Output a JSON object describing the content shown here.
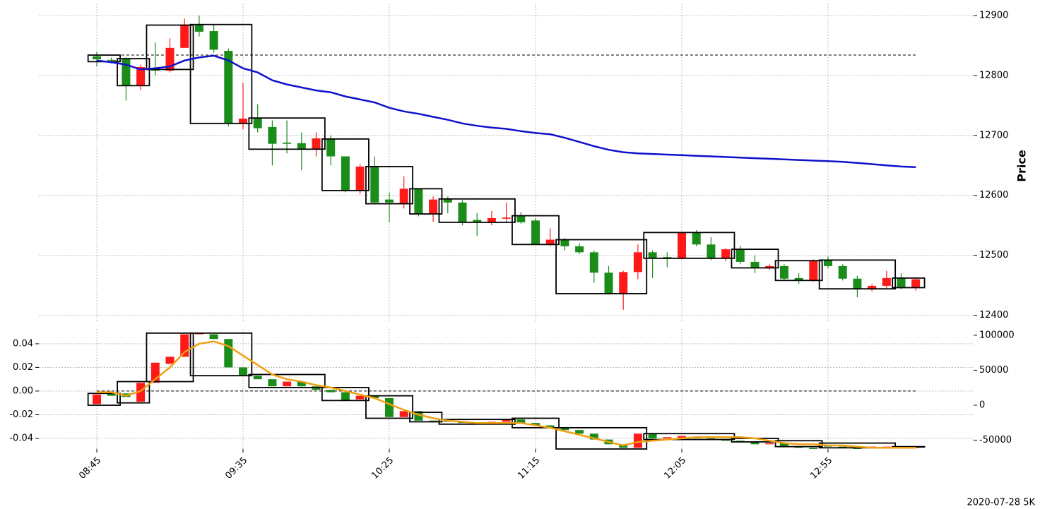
{
  "chart_data": [
    {
      "type": "candlestick",
      "ylabel": "Price",
      "ylim": [
        12390,
        12920
      ],
      "yticks": [
        12400,
        12500,
        12600,
        12700,
        12800,
        12900
      ],
      "grid": true,
      "up_color": "#ff1a1a",
      "down_color": "#1a8c1a",
      "line_color": "#1010cc",
      "box_color": "#000000",
      "hline": 12834,
      "open": [
        12832,
        12826,
        12828,
        12784,
        12812,
        12808,
        12846,
        12885,
        12874,
        12841,
        12720,
        12729,
        12714,
        12688,
        12687,
        12677,
        12694,
        12665,
        12608,
        12648,
        12593,
        12585,
        12612,
        12569,
        12594,
        12588,
        12559,
        12555,
        12561,
        12566,
        12558,
        12519,
        12526,
        12515,
        12505,
        12471,
        12436,
        12472,
        12505,
        12497,
        12495,
        12538,
        12518,
        12495,
        12510,
        12489,
        12479,
        12482,
        12462,
        12458,
        12492,
        12482,
        12461,
        12444,
        12449,
        12462,
        12446
      ],
      "high": [
        12840,
        12830,
        12830,
        12818,
        12855,
        12862,
        12895,
        12900,
        12885,
        12845,
        12788,
        12752,
        12725,
        12725,
        12705,
        12705,
        12700,
        12665,
        12652,
        12665,
        12605,
        12632,
        12612,
        12598,
        12598,
        12592,
        12570,
        12574,
        12588,
        12572,
        12562,
        12545,
        12529,
        12520,
        12508,
        12482,
        12474,
        12518,
        12508,
        12505,
        12538,
        12542,
        12530,
        12512,
        12516,
        12500,
        12485,
        12485,
        12470,
        12493,
        12498,
        12485,
        12466,
        12452,
        12474,
        12470,
        12462
      ],
      "low": [
        12815,
        12820,
        12758,
        12776,
        12800,
        12805,
        12846,
        12865,
        12838,
        12715,
        12710,
        12705,
        12650,
        12670,
        12642,
        12665,
        12650,
        12605,
        12602,
        12585,
        12555,
        12578,
        12565,
        12556,
        12570,
        12550,
        12532,
        12550,
        12556,
        12553,
        12517,
        12515,
        12508,
        12502,
        12454,
        12435,
        12409,
        12460,
        12462,
        12480,
        12493,
        12515,
        12492,
        12490,
        12485,
        12470,
        12476,
        12458,
        12452,
        12456,
        12478,
        12458,
        12430,
        12440,
        12445,
        12443,
        12441
      ],
      "close": [
        12827,
        12825,
        12784,
        12814,
        12808,
        12846,
        12885,
        12873,
        12843,
        12720,
        12728,
        12712,
        12686,
        12686,
        12677,
        12695,
        12665,
        12608,
        12648,
        12588,
        12588,
        12611,
        12569,
        12593,
        12588,
        12555,
        12555,
        12562,
        12563,
        12555,
        12519,
        12526,
        12515,
        12505,
        12471,
        12436,
        12472,
        12505,
        12496,
        12494,
        12538,
        12518,
        12495,
        12510,
        12489,
        12479,
        12482,
        12461,
        12458,
        12491,
        12482,
        12461,
        12444,
        12449,
        12462,
        12446,
        12460
      ],
      "line": [
        12825,
        12822,
        12818,
        12810,
        12812,
        12815,
        12825,
        12830,
        12833,
        12825,
        12812,
        12805,
        12792,
        12785,
        12780,
        12775,
        12772,
        12765,
        12760,
        12755,
        12746,
        12740,
        12736,
        12731,
        12726,
        12720,
        12716,
        12713,
        12711,
        12707,
        12704,
        12702,
        12696,
        12689,
        12682,
        12676,
        12672,
        12670,
        12669,
        12668,
        12667,
        12666,
        12665,
        12664,
        12663,
        12662,
        12661,
        12660,
        12659,
        12658,
        12657,
        12656,
        12654,
        12652,
        12650,
        12648,
        12647
      ],
      "boxes": [
        {
          "start": 0,
          "end": 1,
          "high": 12834,
          "low": 12823
        },
        {
          "start": 2,
          "end": 3,
          "high": 12828,
          "low": 12783
        },
        {
          "start": 4,
          "end": 6,
          "high": 12884,
          "low": 12810
        },
        {
          "start": 7,
          "end": 10,
          "high": 12885,
          "low": 12720
        },
        {
          "start": 11,
          "end": 15,
          "high": 12729,
          "low": 12677
        },
        {
          "start": 16,
          "end": 18,
          "high": 12694,
          "low": 12608
        },
        {
          "start": 19,
          "end": 21,
          "high": 12648,
          "low": 12586
        },
        {
          "start": 22,
          "end": 23,
          "high": 12611,
          "low": 12569
        },
        {
          "start": 24,
          "end": 28,
          "high": 12594,
          "low": 12555
        },
        {
          "start": 29,
          "end": 31,
          "high": 12566,
          "low": 12518
        },
        {
          "start": 32,
          "end": 37,
          "high": 12526,
          "low": 12436
        },
        {
          "start": 38,
          "end": 43,
          "high": 12538,
          "low": 12495
        },
        {
          "start": 44,
          "end": 46,
          "high": 12510,
          "low": 12479
        },
        {
          "start": 47,
          "end": 49,
          "high": 12491,
          "low": 12458
        },
        {
          "start": 50,
          "end": 54,
          "high": 12492,
          "low": 12444
        },
        {
          "start": 55,
          "end": 56,
          "high": 12462,
          "low": 12446
        }
      ]
    },
    {
      "type": "candlestick",
      "note": "2020-07-28 5K",
      "categories": [
        "08:45",
        null,
        null,
        null,
        null,
        null,
        null,
        null,
        null,
        null,
        "09:35",
        null,
        null,
        null,
        null,
        null,
        null,
        null,
        null,
        null,
        "10:25",
        null,
        null,
        null,
        null,
        null,
        null,
        null,
        null,
        null,
        "11:15",
        null,
        null,
        null,
        null,
        null,
        null,
        null,
        null,
        null,
        "12:05",
        null,
        null,
        null,
        null,
        null,
        null,
        null,
        null,
        null,
        "12:55",
        null,
        null,
        null,
        null,
        null,
        null
      ],
      "ylim": [
        -0.049,
        0.0525
      ],
      "yticks": [
        -0.04,
        -0.02,
        {
          "value": 0,
          "label": "0.00"
        },
        0.02,
        0.04
      ],
      "y2lim": [
        -62700,
        109000
      ],
      "y2ticks": [
        -50000,
        0,
        50000,
        100000
      ],
      "grid": true,
      "up_color": "#ff1a1a",
      "down_color": "#1a8c1a",
      "line_color": "#f0a010",
      "box_color": "#000000",
      "hline": 0,
      "open": [
        -0.011,
        -0.001,
        -0.002,
        -0.009,
        0.007,
        0.023,
        0.029,
        0.048,
        0.048,
        0.044,
        0.02,
        0.013,
        0.01,
        0.004,
        0.008,
        0.004,
        0.001,
        -0.001,
        -0.007,
        -0.004,
        -0.006,
        -0.022,
        -0.017,
        -0.025,
        -0.025,
        -0.026,
        -0.027,
        -0.028,
        -0.026,
        -0.024,
        -0.027,
        -0.029,
        -0.031,
        -0.033,
        -0.036,
        -0.041,
        -0.045,
        -0.048,
        -0.036,
        -0.04,
        -0.04,
        -0.039,
        -0.04,
        -0.041,
        -0.042,
        -0.043,
        -0.045,
        -0.044,
        -0.047,
        -0.048,
        -0.046,
        -0.047,
        -0.048,
        -0.048,
        -0.048,
        -0.047,
        -0.048
      ],
      "close": [
        -0.003,
        -0.004,
        -0.005,
        0.007,
        0.024,
        0.029,
        0.048,
        0.049,
        0.044,
        0.02,
        0.013,
        0.01,
        0.004,
        0.008,
        0.004,
        0.001,
        -0.001,
        -0.008,
        -0.004,
        -0.006,
        -0.022,
        -0.017,
        -0.025,
        -0.026,
        -0.026,
        -0.027,
        -0.028,
        -0.026,
        -0.024,
        -0.027,
        -0.029,
        -0.031,
        -0.033,
        -0.036,
        -0.041,
        -0.045,
        -0.048,
        -0.036,
        -0.04,
        -0.039,
        -0.038,
        -0.04,
        -0.041,
        -0.042,
        -0.043,
        -0.045,
        -0.044,
        -0.047,
        -0.048,
        -0.049,
        -0.047,
        -0.048,
        -0.049,
        -0.047,
        -0.047,
        -0.048,
        -0.047
      ],
      "line": [
        -0.001,
        -0.001,
        -0.004,
        0.0,
        0.01,
        0.02,
        0.033,
        0.04,
        0.042,
        0.038,
        0.03,
        0.022,
        0.014,
        0.01,
        0.008,
        0.005,
        0.003,
        0.0,
        -0.003,
        -0.006,
        -0.011,
        -0.016,
        -0.02,
        -0.023,
        -0.025,
        -0.026,
        -0.027,
        -0.027,
        -0.027,
        -0.027,
        -0.029,
        -0.031,
        -0.034,
        -0.037,
        -0.04,
        -0.043,
        -0.046,
        -0.043,
        -0.042,
        -0.041,
        -0.04,
        -0.039,
        -0.039,
        -0.039,
        -0.039,
        -0.04,
        -0.042,
        -0.044,
        -0.045,
        -0.045,
        -0.046,
        -0.046,
        -0.047,
        -0.048,
        -0.048,
        -0.048,
        -0.048
      ],
      "boxes": [
        {
          "start": 0,
          "end": 1,
          "high": -0.002,
          "low": -0.012
        },
        {
          "start": 2,
          "end": 3,
          "high": 0.008,
          "low": -0.01
        },
        {
          "start": 4,
          "end": 6,
          "high": 0.049,
          "low": 0.008
        },
        {
          "start": 7,
          "end": 10,
          "high": 0.049,
          "low": 0.013
        },
        {
          "start": 11,
          "end": 15,
          "high": 0.014,
          "low": 0.003
        },
        {
          "start": 16,
          "end": 18,
          "high": 0.003,
          "low": -0.008
        },
        {
          "start": 19,
          "end": 21,
          "high": -0.004,
          "low": -0.023
        },
        {
          "start": 22,
          "end": 23,
          "high": -0.018,
          "low": -0.026
        },
        {
          "start": 24,
          "end": 28,
          "high": -0.024,
          "low": -0.028
        },
        {
          "start": 29,
          "end": 31,
          "high": -0.023,
          "low": -0.031
        },
        {
          "start": 32,
          "end": 37,
          "high": -0.031,
          "low": -0.049
        },
        {
          "start": 38,
          "end": 43,
          "high": -0.036,
          "low": -0.041
        },
        {
          "start": 44,
          "end": 46,
          "high": -0.04,
          "low": -0.043
        },
        {
          "start": 47,
          "end": 49,
          "high": -0.042,
          "low": -0.047
        },
        {
          "start": 50,
          "end": 54,
          "high": -0.044,
          "low": -0.048
        },
        {
          "start": 55,
          "end": 56,
          "high": -0.047,
          "low": -0.047
        }
      ]
    }
  ]
}
